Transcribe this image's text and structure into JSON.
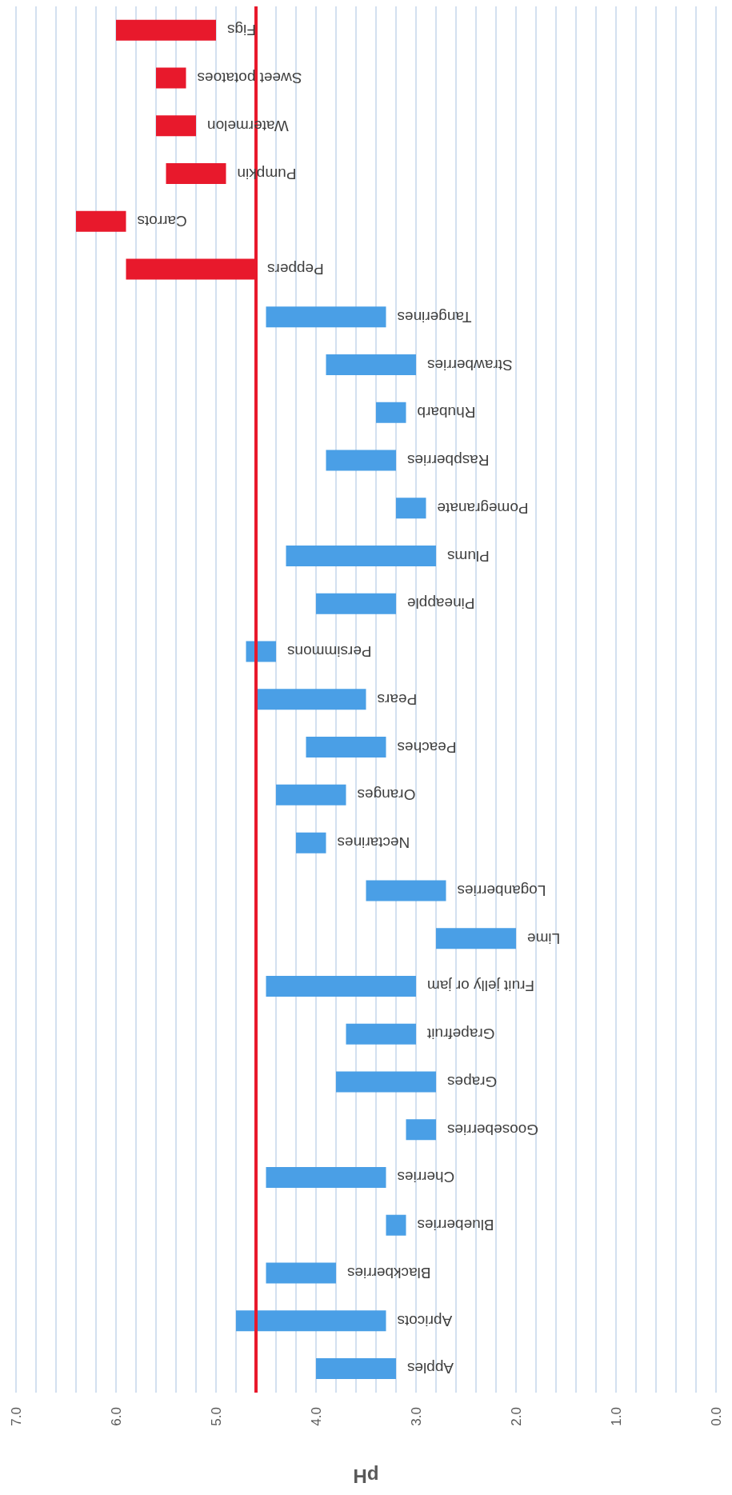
{
  "chart_data": {
    "type": "bar",
    "orientation": "horizontal",
    "xlabel": "pH",
    "categories": [
      "Figs",
      "Sweet potatoes",
      "Watermelon",
      "Pumpkin",
      "Carrots",
      "Peppers",
      "Tangerines",
      "Strawberries",
      "Rhubarb",
      "Raspberries",
      "Pomegranate",
      "Plums",
      "Pineapple",
      "Persimmons",
      "Pears",
      "Peaches",
      "Oranges",
      "Nectarines",
      "Loganberries",
      "Lime",
      "Fruit jelly or jam",
      "Grapefruit",
      "Grapes",
      "Gooseberries",
      "Cherries",
      "Blueberries",
      "Blackberries",
      "Apricots",
      "Apples"
    ],
    "base": [
      5.0,
      5.3,
      5.2,
      4.9,
      5.9,
      4.6,
      3.3,
      3.0,
      3.1,
      3.2,
      2.9,
      2.8,
      3.2,
      4.4,
      3.5,
      3.3,
      3.7,
      3.9,
      2.7,
      2.0,
      3.0,
      3.0,
      2.8,
      2.8,
      3.3,
      3.1,
      3.8,
      3.3,
      3.2
    ],
    "values": [
      1.0,
      0.3,
      0.4,
      0.6,
      0.5,
      1.3,
      1.2,
      0.9,
      0.3,
      0.7,
      0.3,
      1.5,
      0.8,
      0.3,
      1.1,
      0.8,
      0.7,
      0.3,
      0.8,
      0.8,
      1.5,
      0.7,
      1.0,
      0.3,
      1.2,
      0.2,
      0.7,
      1.5,
      0.8
    ],
    "colors": [
      "#e8192c",
      "#e8192c",
      "#e8192c",
      "#e8192c",
      "#e8192c",
      "#e8192c",
      "#4a9fe6",
      "#4a9fe6",
      "#4a9fe6",
      "#4a9fe6",
      "#4a9fe6",
      "#4a9fe6",
      "#4a9fe6",
      "#4a9fe6",
      "#4a9fe6",
      "#4a9fe6",
      "#4a9fe6",
      "#4a9fe6",
      "#4a9fe6",
      "#4a9fe6",
      "#4a9fe6",
      "#4a9fe6",
      "#4a9fe6",
      "#4a9fe6",
      "#4a9fe6",
      "#4a9fe6",
      "#4a9fe6",
      "#4a9fe6",
      "#4a9fe6"
    ],
    "xlim": [
      7,
      0
    ],
    "xticks": [
      {
        "value": 0,
        "label": "0.0"
      },
      {
        "value": 0.2,
        "label": null
      },
      {
        "value": 0.4,
        "label": null
      },
      {
        "value": 0.6,
        "label": null
      },
      {
        "value": 0.8,
        "label": null
      },
      {
        "value": 1,
        "label": "1.0"
      },
      {
        "value": 1.2,
        "label": null
      },
      {
        "value": 1.4,
        "label": null
      },
      {
        "value": 1.6,
        "label": null
      },
      {
        "value": 1.8,
        "label": null
      },
      {
        "value": 2,
        "label": "2.0"
      },
      {
        "value": 2.2,
        "label": null
      },
      {
        "value": 2.4,
        "label": null
      },
      {
        "value": 2.6,
        "label": null
      },
      {
        "value": 2.8,
        "label": null
      },
      {
        "value": 3,
        "label": "3.0"
      },
      {
        "value": 3.2,
        "label": null
      },
      {
        "value": 3.4,
        "label": null
      },
      {
        "value": 3.6,
        "label": null
      },
      {
        "value": 3.8,
        "label": null
      },
      {
        "value": 4,
        "label": "4.0"
      },
      {
        "value": 4.2,
        "label": null
      },
      {
        "value": 4.4,
        "label": null
      },
      {
        "value": 4.6,
        "label": null
      },
      {
        "value": 4.8,
        "label": null
      },
      {
        "value": 5,
        "label": "5.0"
      },
      {
        "value": 5.2,
        "label": null
      },
      {
        "value": 5.4,
        "label": null
      },
      {
        "value": 5.6,
        "label": null
      },
      {
        "value": 5.8,
        "label": null
      },
      {
        "value": 6,
        "label": "6.0"
      },
      {
        "value": 6.2,
        "label": null
      },
      {
        "value": 6.4,
        "label": null
      },
      {
        "value": 6.6,
        "label": null
      },
      {
        "value": 6.8,
        "label": null
      },
      {
        "value": 7,
        "label": "7.0"
      }
    ],
    "grid": "x",
    "ref_lines": [
      {
        "axis": "x",
        "value": 4.6,
        "color": "#e8192c"
      }
    ]
  }
}
